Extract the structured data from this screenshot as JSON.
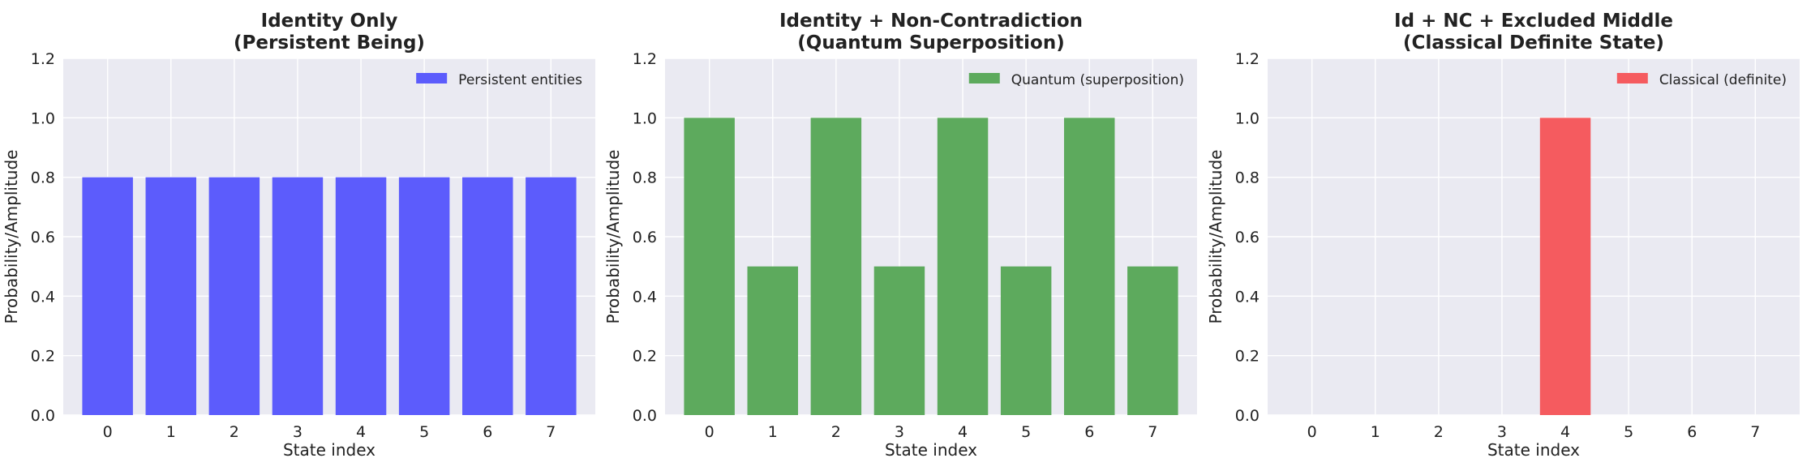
{
  "chart_data": [
    {
      "type": "bar",
      "title_line1": "Identity Only",
      "title_line2": "(Persistent Being)",
      "xlabel": "State index",
      "ylabel": "Probability/Amplitude",
      "categories": [
        "0",
        "1",
        "2",
        "3",
        "4",
        "5",
        "6",
        "7"
      ],
      "series": [
        {
          "name": "Persistent entities",
          "values": [
            0.8,
            0.8,
            0.8,
            0.8,
            0.8,
            0.8,
            0.8,
            0.8
          ],
          "color": "#5c5cfc"
        }
      ],
      "ylim": [
        0,
        1.2
      ],
      "yticks": [
        "0.0",
        "0.2",
        "0.4",
        "0.6",
        "0.8",
        "1.0",
        "1.2"
      ],
      "grid": true,
      "legend_position": "top-right"
    },
    {
      "type": "bar",
      "title_line1": "Identity + Non-Contradiction",
      "title_line2": "(Quantum Superposition)",
      "xlabel": "State index",
      "ylabel": "Probability/Amplitude",
      "categories": [
        "0",
        "1",
        "2",
        "3",
        "4",
        "5",
        "6",
        "7"
      ],
      "series": [
        {
          "name": "Quantum (superposition)",
          "values": [
            1.0,
            0.5,
            1.0,
            0.5,
            1.0,
            0.5,
            1.0,
            0.5
          ],
          "color": "#5daa5d"
        }
      ],
      "ylim": [
        0,
        1.2
      ],
      "yticks": [
        "0.0",
        "0.2",
        "0.4",
        "0.6",
        "0.8",
        "1.0",
        "1.2"
      ],
      "grid": true,
      "legend_position": "top-right"
    },
    {
      "type": "bar",
      "title_line1": "Id + NC + Excluded Middle",
      "title_line2": "(Classical Definite State)",
      "xlabel": "State index",
      "ylabel": "Probability/Amplitude",
      "categories": [
        "0",
        "1",
        "2",
        "3",
        "4",
        "5",
        "6",
        "7"
      ],
      "series": [
        {
          "name": "Classical (definite)",
          "values": [
            0,
            0,
            0,
            0,
            1.0,
            0,
            0,
            0
          ],
          "color": "#f55b5f"
        }
      ],
      "ylim": [
        0,
        1.2
      ],
      "yticks": [
        "0.0",
        "0.2",
        "0.4",
        "0.6",
        "0.8",
        "1.0",
        "1.2"
      ],
      "grid": true,
      "legend_position": "top-right"
    }
  ],
  "style": {
    "plot_background": "#eaeaf2",
    "grid_color": "#ffffff",
    "text_color": "#222222"
  }
}
